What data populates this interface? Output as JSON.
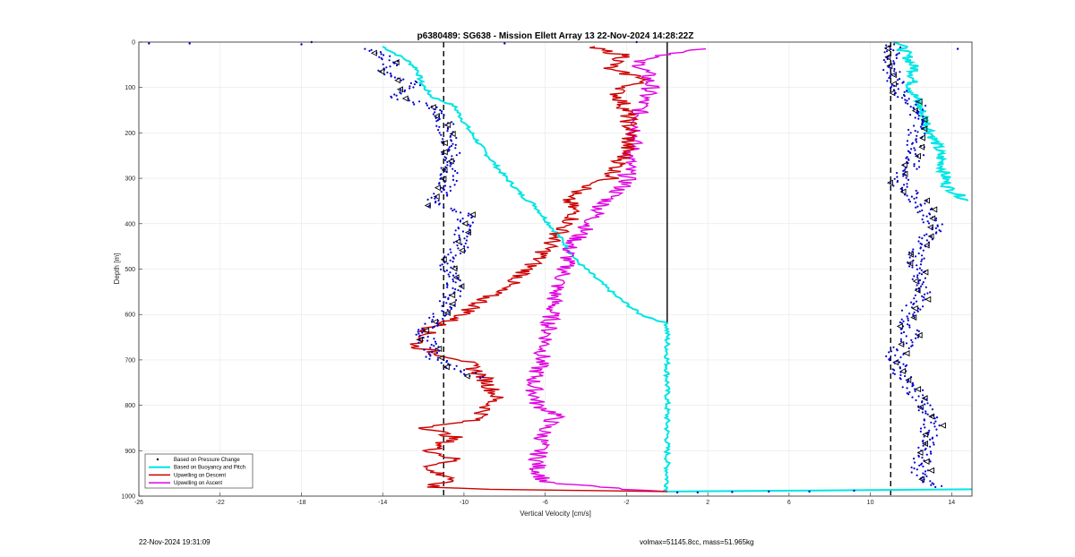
{
  "footer": {
    "timestamp": "22-Nov-2024 19:31:09",
    "mass_info": "volmax=51145.8cc, mass=51.965kg"
  },
  "chart_data": {
    "type": "line",
    "title": "p6380489: SG638 - Mission Ellett Array 13 22-Nov-2024 14:28:22Z",
    "xlabel": "Vertical Velocity [cm/s]",
    "ylabel": "Depth [m]",
    "xlim": [
      -26,
      15
    ],
    "ylim": [
      1000,
      0
    ],
    "y_reversed": true,
    "grid": true,
    "xticks": [
      -26,
      -22,
      -18,
      -14,
      -10,
      -6,
      -2,
      2,
      6,
      10,
      14
    ],
    "yticks": [
      0,
      100,
      200,
      300,
      400,
      500,
      600,
      700,
      800,
      900,
      1000
    ],
    "legend": {
      "placement": "bottom-left",
      "entries": [
        "Based on Pressure Change",
        "Based on Buoyancy and Pitch",
        "Upwelling on Descent",
        "Upwelling on Ascent"
      ]
    },
    "reference_lines": [
      {
        "style": "dashed",
        "x": -11
      },
      {
        "style": "dashed",
        "x": 11
      },
      {
        "style": "solid",
        "x": 0,
        "depth_range": [
          0,
          620
        ]
      }
    ],
    "series": [
      {
        "name": "Based on Pressure Change",
        "kind": "scatter",
        "color": "#0000cc",
        "marker_color": "#000000",
        "profiles": [
          {
            "points": [
              [
                -14.5,
                15
              ],
              [
                -13.6,
                40
              ],
              [
                -13.9,
                65
              ],
              [
                -12.4,
                95
              ],
              [
                -13.4,
                120
              ],
              [
                -11.2,
                150
              ],
              [
                -10.8,
                200
              ],
              [
                -10.6,
                260
              ],
              [
                -10.8,
                310
              ],
              [
                -11.6,
                360
              ],
              [
                -9.8,
                380
              ],
              [
                -10.2,
                450
              ],
              [
                -10.8,
                490
              ],
              [
                -10.4,
                540
              ],
              [
                -11.0,
                590
              ],
              [
                -12.0,
                640
              ],
              [
                -11.4,
                700
              ],
              [
                -9.2,
                740
              ]
            ]
          },
          {
            "points": [
              [
                11.2,
                5
              ],
              [
                11.0,
                70
              ],
              [
                11.5,
                110
              ],
              [
                12.3,
                140
              ],
              [
                12.3,
                200
              ],
              [
                12.2,
                260
              ],
              [
                11.4,
                310
              ],
              [
                12.6,
                360
              ],
              [
                13.2,
                410
              ],
              [
                12.2,
                470
              ],
              [
                12.3,
                520
              ],
              [
                12.6,
                560
              ],
              [
                11.8,
                600
              ],
              [
                12.0,
                650
              ],
              [
                11.2,
                690
              ],
              [
                11.6,
                740
              ],
              [
                12.4,
                780
              ],
              [
                13.0,
                840
              ],
              [
                12.6,
                900
              ],
              [
                12.4,
                950
              ],
              [
                13.2,
                980
              ]
            ]
          }
        ],
        "outliers": [
          [
            -25.5,
            3
          ],
          [
            -23.5,
            3
          ],
          [
            -18,
            5
          ],
          [
            -17.5,
            0
          ],
          [
            -8,
            3
          ],
          [
            -1.5,
            0
          ],
          [
            0.5,
            992
          ],
          [
            1.5,
            992
          ],
          [
            3.2,
            991
          ],
          [
            5,
            990
          ],
          [
            7,
            990
          ],
          [
            9.2,
            988
          ],
          [
            14.3,
            15
          ]
        ]
      },
      {
        "name": "Based on Buoyancy and Pitch",
        "kind": "line",
        "color": "#00e5e5",
        "descent": [
          [
            -14,
            10
          ],
          [
            -12.8,
            40
          ],
          [
            -12.3,
            60
          ],
          [
            -12.1,
            90
          ],
          [
            -11.6,
            120
          ],
          [
            -10.5,
            140
          ],
          [
            -9.8,
            190
          ],
          [
            -9.0,
            240
          ],
          [
            -8.1,
            290
          ],
          [
            -7.1,
            340
          ],
          [
            -6.5,
            360
          ],
          [
            -6.0,
            390
          ],
          [
            -5.1,
            440
          ],
          [
            -4.5,
            480
          ],
          [
            -3.5,
            520
          ],
          [
            -2.5,
            560
          ],
          [
            -1.3,
            600
          ],
          [
            0,
            620
          ],
          [
            0,
            990
          ],
          [
            15,
            985
          ]
        ],
        "ascent": [
          [
            11.4,
            0
          ],
          [
            12.2,
            60
          ],
          [
            12.0,
            100
          ],
          [
            12.4,
            140
          ],
          [
            12.8,
            180
          ],
          [
            13.3,
            230
          ],
          [
            13.6,
            280
          ],
          [
            13.8,
            320
          ],
          [
            14.8,
            350
          ]
        ]
      },
      {
        "name": "Upwelling on Descent",
        "kind": "line",
        "color": "#cc0000",
        "points": [
          [
            -4,
            10
          ],
          [
            -2,
            30
          ],
          [
            -3,
            60
          ],
          [
            -1,
            80
          ],
          [
            -2.5,
            110
          ],
          [
            -2,
            150
          ],
          [
            -1.8,
            200
          ],
          [
            -2.1,
            250
          ],
          [
            -2.8,
            300
          ],
          [
            -5,
            340
          ],
          [
            -4.5,
            380
          ],
          [
            -5.5,
            430
          ],
          [
            -6.2,
            470
          ],
          [
            -7.3,
            520
          ],
          [
            -8.8,
            560
          ],
          [
            -10.0,
            600
          ],
          [
            -11.6,
            630
          ],
          [
            -12.4,
            670
          ],
          [
            -11.0,
            690
          ],
          [
            -10.0,
            700
          ],
          [
            -9.0,
            740
          ],
          [
            -8.4,
            780
          ],
          [
            -9.3,
            830
          ],
          [
            -11.8,
            850
          ],
          [
            -10.5,
            870
          ],
          [
            -11.6,
            900
          ],
          [
            -10.4,
            920
          ],
          [
            -12.0,
            940
          ],
          [
            -10.5,
            960
          ],
          [
            -11.8,
            980
          ],
          [
            -8.6,
            985
          ],
          [
            0,
            990
          ]
        ]
      },
      {
        "name": "Upwelling on Ascent",
        "kind": "line",
        "color": "#e000e0",
        "points": [
          [
            1.8,
            15
          ],
          [
            -1.5,
            40
          ],
          [
            -1,
            70
          ],
          [
            -0.8,
            100
          ],
          [
            -1.2,
            130
          ],
          [
            -1.4,
            160
          ],
          [
            -1.5,
            200
          ],
          [
            -1.9,
            260
          ],
          [
            -2,
            310
          ],
          [
            -3.2,
            360
          ],
          [
            -3.8,
            400
          ],
          [
            -4.8,
            450
          ],
          [
            -5.0,
            500
          ],
          [
            -5.5,
            550
          ],
          [
            -5.7,
            600
          ],
          [
            -5.9,
            650
          ],
          [
            -6.2,
            700
          ],
          [
            -6.6,
            750
          ],
          [
            -6.4,
            800
          ],
          [
            -5.4,
            820
          ],
          [
            -6.0,
            850
          ],
          [
            -6.3,
            900
          ],
          [
            -6.4,
            940
          ],
          [
            -6.0,
            970
          ],
          [
            -2,
            985
          ],
          [
            0,
            990
          ]
        ]
      }
    ]
  }
}
